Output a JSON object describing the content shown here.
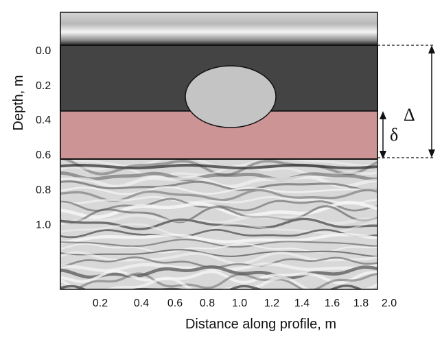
{
  "figure": {
    "y_axis_label": "Depth, m",
    "x_axis_label": "Distance along profile, m",
    "y_ticks": [
      "0.0",
      "0.2",
      "0.4",
      "0.6",
      "0.8",
      "1.0"
    ],
    "x_ticks": [
      "0.2",
      "0.4",
      "0.6",
      "0.8",
      "1.0",
      "1.2",
      "1.4",
      "1.6",
      "1.8",
      "2.0"
    ],
    "total_thickness_symbol": "Δ",
    "layer_thickness_symbol": "δ",
    "colors": {
      "upper_layer": "#444444",
      "lower_layer": "#cc9494",
      "inclusion": "#c4c4c4",
      "radargram_background": "#d8d8d8"
    }
  }
}
